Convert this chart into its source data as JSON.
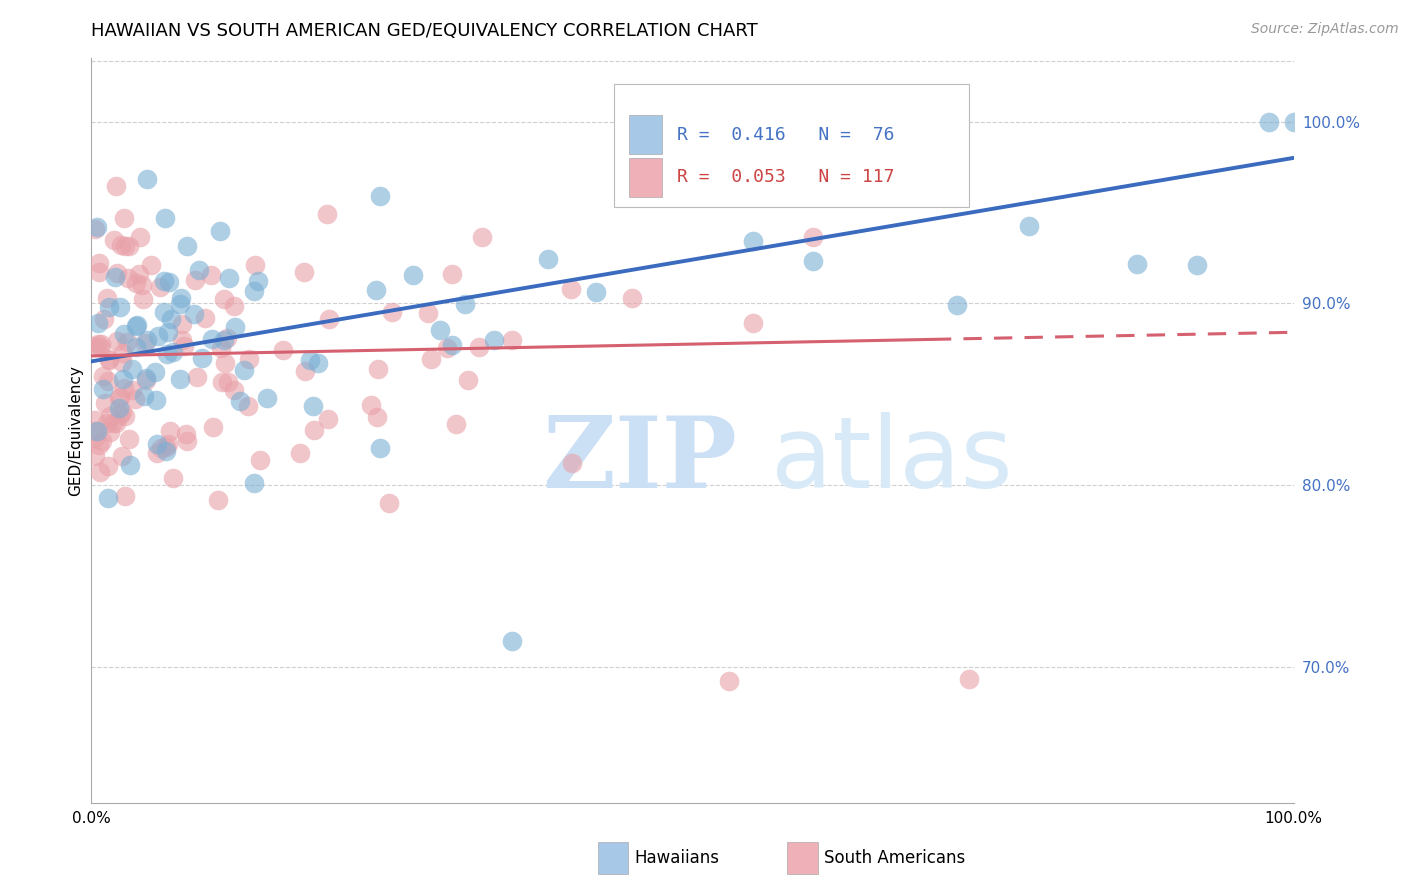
{
  "title": "HAWAIIAN VS SOUTH AMERICAN GED/EQUIVALENCY CORRELATION CHART",
  "source": "Source: ZipAtlas.com",
  "ylabel": "GED/Equivalency",
  "xmin": 0.0,
  "xmax": 1.0,
  "ymin": 0.625,
  "ymax": 1.035,
  "yticks": [
    0.7,
    0.8,
    0.9,
    1.0
  ],
  "ytick_labels": [
    "70.0%",
    "80.0%",
    "90.0%",
    "100.0%"
  ],
  "hawaiian_color": "#7bafd4",
  "hawaiian_edge_color": "#7bafd4",
  "south_american_color": "#e8a0a8",
  "south_american_edge_color": "#e8a0a8",
  "hawaiian_line_color": "#3a6bbf",
  "south_american_line_color": "#d46070",
  "R_hawaiian": 0.416,
  "N_hawaiian": 76,
  "R_south_american": 0.053,
  "N_south_american": 117,
  "legend_hawaiians": "Hawaiians",
  "legend_south_americans": "South Americans",
  "haw_legend_color": "#a8c8e8",
  "sa_legend_color": "#f0b0b8",
  "watermark_zip_color": "#d8eaf8",
  "watermark_atlas_color": "#c8dff0",
  "title_fontsize": 13,
  "source_fontsize": 10,
  "tick_label_fontsize": 11,
  "ytick_color": "#4472c4",
  "legend_text_haw_color": "#4472c4",
  "legend_text_sa_color": "#cc4444",
  "grid_color": "#d0d0d0",
  "spine_color": "#aaaaaa"
}
